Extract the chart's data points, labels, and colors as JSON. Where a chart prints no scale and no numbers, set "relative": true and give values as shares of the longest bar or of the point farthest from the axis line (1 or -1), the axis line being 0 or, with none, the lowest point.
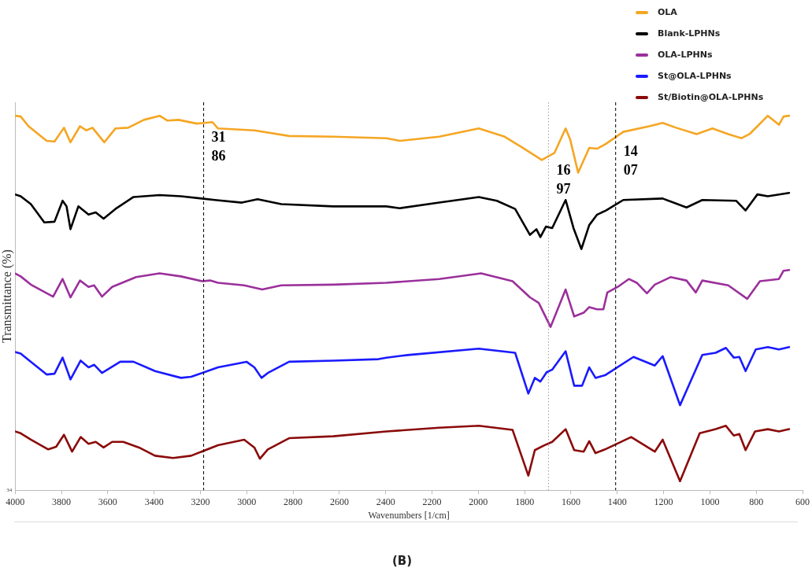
{
  "chart_data": {
    "type": "line",
    "relative": true,
    "title": "(B)",
    "xlabel": "Wavenumbers [1/cm]",
    "ylabel": "Transmittance (%)",
    "xlim": [
      4000,
      600
    ],
    "xticks": [
      4000,
      3800,
      3600,
      3400,
      3200,
      3000,
      2800,
      2600,
      2400,
      2200,
      2000,
      1800,
      1600,
      1400,
      1200,
      1000,
      800,
      600
    ],
    "grid": false,
    "legend": "top right",
    "marker": "none",
    "line_style": "solid",
    "annotations": [
      "34"
    ],
    "ref_lines": [
      {
        "axis": "x",
        "value": 3186,
        "label": "3186",
        "color": "#000000",
        "line_style": "dashed"
      },
      {
        "axis": "x",
        "value": 1697,
        "label": "1697",
        "color": "#999999",
        "line_style": "dotted"
      },
      {
        "axis": "x",
        "value": 1407,
        "label": "1407",
        "color": "#000000",
        "line_style": "dashed"
      }
    ],
    "series": [
      {
        "name": "OLA",
        "color": "#f5a623",
        "x": [
          4000,
          3976,
          3942,
          3864,
          3830,
          3789,
          3761,
          3720,
          3693,
          3666,
          3615,
          3567,
          3512,
          3444,
          3376,
          3342,
          3294,
          3216,
          3148,
          3124,
          2967,
          2817,
          2626,
          2397,
          2339,
          2169,
          1998,
          1886,
          1807,
          1726,
          1671,
          1623,
          1603,
          1569,
          1521,
          1487,
          1449,
          1374,
          1262,
          1204,
          1146,
          1057,
          989,
          921,
          863,
          829,
          795,
          750,
          702,
          682,
          658
        ],
        "values": [
          1.0,
          0.998,
          0.972,
          0.933,
          0.931,
          0.968,
          0.929,
          0.972,
          0.961,
          0.968,
          0.929,
          0.966,
          0.968,
          0.989,
          1.0,
          0.987,
          0.989,
          0.979,
          0.983,
          0.966,
          0.961,
          0.946,
          0.944,
          0.94,
          0.933,
          0.944,
          0.966,
          0.944,
          0.914,
          0.882,
          0.901,
          0.966,
          0.936,
          0.848,
          0.914,
          0.912,
          0.925,
          0.957,
          0.972,
          0.981,
          0.968,
          0.951,
          0.966,
          0.951,
          0.94,
          0.951,
          0.972,
          1.0,
          0.976,
          0.998,
          1.0
        ]
      },
      {
        "name": "Blank-LPHNs",
        "color": "#000000",
        "x": [
          4000,
          3976,
          3932,
          3874,
          3830,
          3795,
          3778,
          3761,
          3727,
          3683,
          3652,
          3618,
          3567,
          3489,
          3376,
          3284,
          3137,
          3021,
          2953,
          2851,
          2626,
          2397,
          2339,
          2169,
          1998,
          1920,
          1841,
          1777,
          1749,
          1732,
          1708,
          1681,
          1623,
          1589,
          1555,
          1521,
          1487,
          1449,
          1374,
          1204,
          1101,
          1033,
          887,
          846,
          795,
          750,
          658
        ],
        "values": [
          0.79,
          0.785,
          0.764,
          0.715,
          0.717,
          0.773,
          0.758,
          0.697,
          0.758,
          0.736,
          0.742,
          0.725,
          0.751,
          0.783,
          0.788,
          0.785,
          0.775,
          0.768,
          0.777,
          0.764,
          0.758,
          0.758,
          0.753,
          0.768,
          0.783,
          0.773,
          0.751,
          0.682,
          0.697,
          0.676,
          0.704,
          0.7,
          0.775,
          0.7,
          0.644,
          0.708,
          0.736,
          0.747,
          0.775,
          0.779,
          0.755,
          0.775,
          0.773,
          0.747,
          0.79,
          0.785,
          0.794
        ]
      },
      {
        "name": "OLA-LPHNs",
        "color": "#9b309b",
        "x": [
          4000,
          3976,
          3932,
          3836,
          3795,
          3761,
          3720,
          3683,
          3659,
          3625,
          3581,
          3478,
          3376,
          3284,
          3192,
          3158,
          3124,
          3011,
          2933,
          2851,
          2626,
          2397,
          2169,
          1988,
          1852,
          1777,
          1739,
          1688,
          1623,
          1586,
          1545,
          1521,
          1487,
          1460,
          1443,
          1398,
          1350,
          1316,
          1272,
          1238,
          1170,
          1101,
          1061,
          1033,
          921,
          839,
          784,
          702,
          682,
          658
        ],
        "values": [
          0.579,
          0.571,
          0.549,
          0.517,
          0.564,
          0.515,
          0.56,
          0.543,
          0.547,
          0.517,
          0.543,
          0.569,
          0.579,
          0.571,
          0.558,
          0.56,
          0.554,
          0.547,
          0.536,
          0.547,
          0.549,
          0.554,
          0.564,
          0.579,
          0.558,
          0.515,
          0.5,
          0.436,
          0.536,
          0.464,
          0.474,
          0.489,
          0.483,
          0.483,
          0.528,
          0.543,
          0.564,
          0.554,
          0.526,
          0.549,
          0.569,
          0.56,
          0.528,
          0.56,
          0.547,
          0.511,
          0.558,
          0.564,
          0.586,
          0.588
        ]
      },
      {
        "name": "St@OLA-LPHNs",
        "color": "#1a1aff",
        "x": [
          4000,
          3976,
          3932,
          3864,
          3830,
          3795,
          3761,
          3717,
          3683,
          3659,
          3625,
          3546,
          3489,
          3396,
          3284,
          3240,
          3124,
          3001,
          2967,
          2936,
          2909,
          2817,
          2626,
          2431,
          2397,
          2305,
          1998,
          1841,
          1784,
          1756,
          1732,
          1705,
          1681,
          1623,
          1586,
          1552,
          1521,
          1494,
          1453,
          1330,
          1238,
          1204,
          1129,
          1033,
          975,
          931,
          897,
          873,
          846,
          802,
          750,
          702,
          658
        ],
        "values": [
          0.369,
          0.365,
          0.343,
          0.309,
          0.311,
          0.354,
          0.296,
          0.346,
          0.328,
          0.335,
          0.313,
          0.343,
          0.343,
          0.318,
          0.3,
          0.303,
          0.328,
          0.343,
          0.328,
          0.3,
          0.313,
          0.343,
          0.346,
          0.35,
          0.354,
          0.361,
          0.378,
          0.367,
          0.258,
          0.3,
          0.29,
          0.315,
          0.322,
          0.371,
          0.279,
          0.279,
          0.328,
          0.3,
          0.307,
          0.356,
          0.333,
          0.358,
          0.227,
          0.361,
          0.367,
          0.38,
          0.354,
          0.356,
          0.318,
          0.376,
          0.382,
          0.376,
          0.382
        ]
      },
      {
        "name": "St/Biotin@OLA-LPHNs",
        "color": "#8b0a0a",
        "x": [
          4000,
          3976,
          3932,
          3857,
          3823,
          3789,
          3754,
          3717,
          3683,
          3652,
          3618,
          3581,
          3533,
          3465,
          3396,
          3318,
          3240,
          3124,
          3011,
          2967,
          2943,
          2909,
          2817,
          2626,
          2397,
          2169,
          1998,
          1852,
          1784,
          1756,
          1715,
          1681,
          1623,
          1586,
          1545,
          1521,
          1494,
          1453,
          1340,
          1238,
          1204,
          1129,
          1044,
          975,
          931,
          897,
          873,
          846,
          805,
          750,
          702,
          658
        ],
        "values": [
          0.157,
          0.152,
          0.135,
          0.109,
          0.116,
          0.148,
          0.103,
          0.142,
          0.124,
          0.129,
          0.114,
          0.129,
          0.129,
          0.114,
          0.092,
          0.086,
          0.092,
          0.12,
          0.135,
          0.114,
          0.084,
          0.109,
          0.139,
          0.144,
          0.157,
          0.167,
          0.172,
          0.161,
          0.039,
          0.107,
          0.12,
          0.129,
          0.163,
          0.107,
          0.103,
          0.131,
          0.099,
          0.109,
          0.142,
          0.103,
          0.135,
          0.024,
          0.152,
          0.163,
          0.172,
          0.146,
          0.15,
          0.107,
          0.157,
          0.163,
          0.157,
          0.163
        ]
      }
    ]
  }
}
